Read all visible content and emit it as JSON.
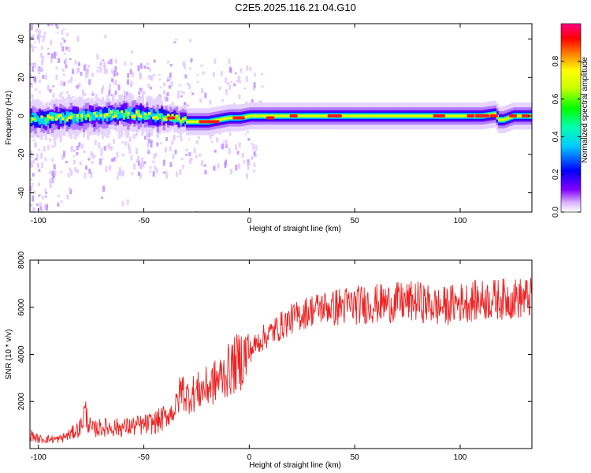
{
  "title": "C2E5.2025.116.21.04.G10",
  "chart_data": [
    {
      "type": "heatmap",
      "xlabel": "Height of straight line (km)",
      "ylabel": "Frequency (Hz)",
      "xlim": [
        -104,
        134
      ],
      "ylim": [
        -50,
        48
      ],
      "xticks": [
        -100,
        -50,
        0,
        50,
        100
      ],
      "yticks": [
        -40,
        -20,
        0,
        20,
        40
      ],
      "colorbar": {
        "label": "Normalized spectral amplitude",
        "ticks": [
          0.0,
          0.2,
          0.4,
          0.6,
          0.8
        ],
        "range": [
          0,
          1
        ],
        "colors": [
          "#ffffff",
          "#7a00ff",
          "#0000ff",
          "#00ffff",
          "#00ff00",
          "#ffff00",
          "#ff8000",
          "#ff0000",
          "#ff0080"
        ]
      },
      "ridge": {
        "description_values": "center frequency of main band vs height",
        "x": [
          -104,
          -90,
          -75,
          -60,
          -45,
          -35,
          -30,
          -25,
          -20,
          -15,
          -10,
          -5,
          0,
          10,
          20,
          40,
          60,
          80,
          90,
          100,
          110,
          116,
          118,
          120,
          125,
          134
        ],
        "y": [
          -2,
          -1,
          0,
          1,
          0,
          -1,
          -3,
          -3,
          -3,
          -2,
          -1,
          -1,
          0,
          0,
          0,
          0,
          0,
          0,
          0,
          0,
          0,
          1,
          -2,
          -2,
          0,
          0
        ]
      },
      "grid": false
    },
    {
      "type": "line",
      "xlabel": "Height of straight line (km)",
      "ylabel": "SNR (10 * v/v)",
      "xlim": [
        -104,
        134
      ],
      "ylim": [
        0,
        8000
      ],
      "xticks": [
        -100,
        -50,
        0,
        50,
        100
      ],
      "yticks": [
        2000,
        4000,
        6000,
        8000
      ],
      "color": "#ee2222",
      "series": [
        {
          "x": [
            -104,
            -100,
            -90,
            -85,
            -80,
            -78,
            -75,
            -70,
            -60,
            -50,
            -45,
            -40,
            -35,
            -32,
            -30,
            -25,
            -20,
            -15,
            -10,
            -5,
            0,
            5,
            10,
            15,
            20,
            25,
            30,
            35,
            40,
            45,
            50,
            60,
            70,
            80,
            90,
            100,
            110,
            120,
            134
          ],
          "values": [
            600,
            400,
            400,
            600,
            900,
            1600,
            800,
            900,
            900,
            1000,
            1100,
            1300,
            1700,
            2600,
            2200,
            2400,
            2600,
            2900,
            3300,
            3700,
            4100,
            4600,
            4900,
            5200,
            5500,
            5700,
            5900,
            6000,
            6000,
            6050,
            6100,
            6150,
            6200,
            6250,
            6000,
            6200,
            6300,
            6350,
            6400
          ]
        }
      ],
      "grid": false
    }
  ]
}
